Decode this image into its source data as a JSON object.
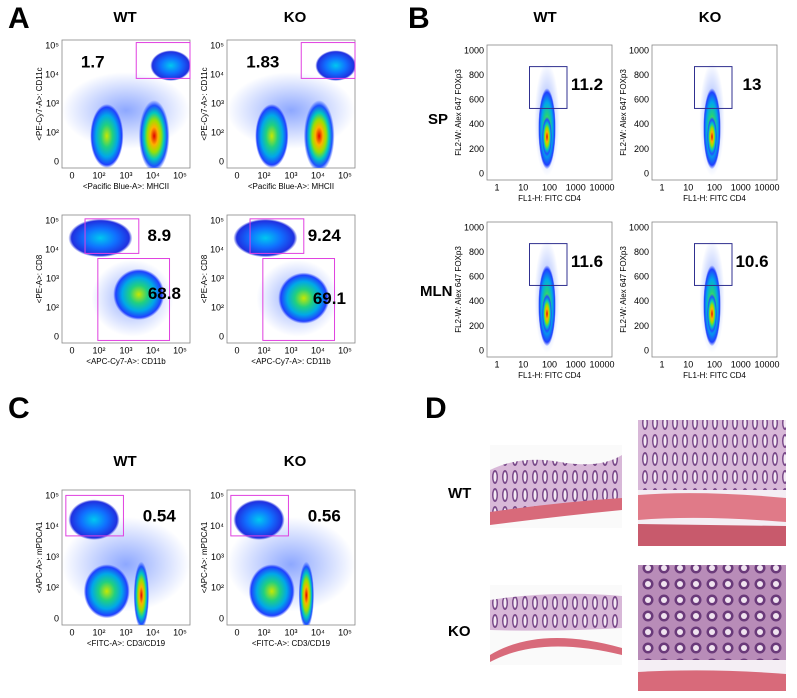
{
  "panel_a": {
    "label": "A",
    "columns": [
      "WT",
      "KO"
    ],
    "plots": [
      {
        "y_label": "<PE-Cy7-A>: CD11c",
        "x_label": "<Pacific Blue-A>: MHCII",
        "gate_values": [
          1.7
        ],
        "x_ticks": [
          "0",
          "10²",
          "10³",
          "10⁴",
          "10⁵"
        ],
        "y_ticks": [
          "0",
          "10²",
          "10³",
          "10⁴",
          "10⁵"
        ]
      },
      {
        "y_label": "<PE-Cy7-A>: CD11c",
        "x_label": "<Pacific Blue-A>: MHCII",
        "gate_values": [
          1.83
        ],
        "x_ticks": [
          "0",
          "10²",
          "10³",
          "10⁴",
          "10⁵"
        ],
        "y_ticks": [
          "0",
          "10²",
          "10³",
          "10⁴",
          "10⁵"
        ]
      },
      {
        "y_label": "<PE-A>: CD8",
        "x_label": "<APC-Cy7-A>: CD11b",
        "gate_values": [
          8.9,
          68.8
        ],
        "x_ticks": [
          "0",
          "10²",
          "10³",
          "10⁴",
          "10⁵"
        ],
        "y_ticks": [
          "0",
          "10²",
          "10³",
          "10⁴",
          "10⁵"
        ]
      },
      {
        "y_label": "<PE-A>: CD8",
        "x_label": "<APC-Cy7-A>: CD11b",
        "gate_values": [
          9.24,
          69.1
        ],
        "x_ticks": [
          "0",
          "10²",
          "10³",
          "10⁴",
          "10⁵"
        ],
        "y_ticks": [
          "0",
          "10²",
          "10³",
          "10⁴",
          "10⁵"
        ]
      }
    ]
  },
  "panel_b": {
    "label": "B",
    "columns": [
      "WT",
      "KO"
    ],
    "rows": [
      "SP",
      "MLN"
    ],
    "plots": [
      {
        "y_label": "FL2-W: Alex 647 FOXp3",
        "x_label": "FL1-H: FITC CD4",
        "gate_values": [
          11.2
        ],
        "x_ticks": [
          1,
          10,
          100,
          1000,
          10000
        ],
        "y_ticks": [
          0,
          200,
          400,
          600,
          800,
          1000
        ]
      },
      {
        "y_label": "FL2-W: Alex 647 FOXp3",
        "x_label": "FL1-H: FITC CD4",
        "gate_values": [
          13
        ],
        "x_ticks": [
          1,
          10,
          100,
          1000,
          10000
        ],
        "y_ticks": [
          0,
          200,
          400,
          600,
          800,
          1000
        ]
      },
      {
        "y_label": "FL2-W: Alex 647 FOXp3",
        "x_label": "FL1-H: FITC CD4",
        "gate_values": [
          11.6
        ],
        "x_ticks": [
          1,
          10,
          100,
          1000,
          10000
        ],
        "y_ticks": [
          0,
          200,
          400,
          600,
          800,
          1000
        ]
      },
      {
        "y_label": "FL2-W: Alex 647 FOXp3",
        "x_label": "FL1-H: FITC CD4",
        "gate_values": [
          10.6
        ],
        "x_ticks": [
          1,
          10,
          100,
          1000,
          10000
        ],
        "y_ticks": [
          0,
          200,
          400,
          600,
          800,
          1000
        ]
      }
    ]
  },
  "panel_c": {
    "label": "C",
    "columns": [
      "WT",
      "KO"
    ],
    "plots": [
      {
        "y_label": "<APC-A>: mPDCA1",
        "x_label": "<FITC-A>: CD3/CD19",
        "gate_values": [
          0.54
        ],
        "x_ticks": [
          "0",
          "10²",
          "10³",
          "10⁴",
          "10⁵"
        ],
        "y_ticks": [
          "0",
          "10²",
          "10³",
          "10⁴",
          "10⁵"
        ]
      },
      {
        "y_label": "<APC-A>: mPDCA1",
        "x_label": "<FITC-A>: CD3/CD19",
        "gate_values": [
          0.56
        ],
        "x_ticks": [
          "0",
          "10²",
          "10³",
          "10⁴",
          "10⁵"
        ],
        "y_ticks": [
          "0",
          "10²",
          "10³",
          "10⁴",
          "10⁵"
        ]
      }
    ]
  },
  "panel_d": {
    "label": "D",
    "rows": [
      "WT",
      "KO"
    ]
  }
}
